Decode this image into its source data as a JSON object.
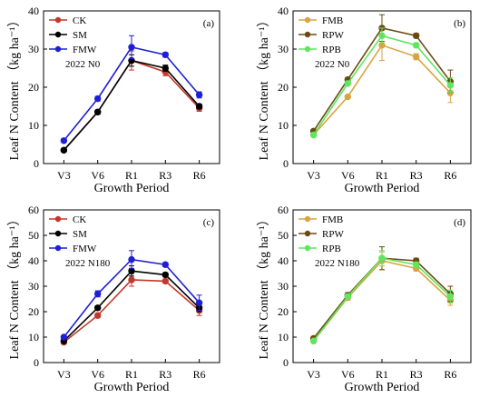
{
  "chart_data": [
    {
      "type": "line",
      "panel_label": "(a)",
      "annotation": "2022 N0",
      "categories": [
        "V3",
        "V6",
        "R1",
        "R3",
        "R6"
      ],
      "xlabel": "Growth Period",
      "ylabel": "Leaf N Content （kg ha⁻¹）",
      "ylim": [
        0,
        40
      ],
      "yticks": [
        "0",
        "10",
        "20",
        "30",
        "40"
      ],
      "legend_position": "top-left",
      "series": [
        {
          "name": "CK",
          "color": "#c0392b",
          "values": [
            3.5,
            13.5,
            27.0,
            24.0,
            14.5
          ],
          "errors": [
            0.5,
            0.6,
            2.5,
            1.0,
            0.8
          ]
        },
        {
          "name": "SM",
          "color": "#000000",
          "values": [
            3.5,
            13.5,
            27.0,
            25.0,
            15.0
          ],
          "errors": [
            0.4,
            0.5,
            1.5,
            0.8,
            0.6
          ]
        },
        {
          "name": "FMW",
          "color": "#1f1fd6",
          "values": [
            6.0,
            17.0,
            30.5,
            28.5,
            18.0
          ],
          "errors": [
            0.5,
            0.6,
            3.0,
            0.6,
            0.8
          ]
        }
      ]
    },
    {
      "type": "line",
      "panel_label": "(b)",
      "annotation": "2022 N0",
      "categories": [
        "V3",
        "V6",
        "R1",
        "R3",
        "R6"
      ],
      "xlabel": "Growth Period",
      "ylabel": "Leaf N Content （kg ha⁻¹）",
      "ylim": [
        0,
        40
      ],
      "yticks": [
        "0",
        "10",
        "20",
        "30",
        "40"
      ],
      "legend_position": "top-left",
      "series": [
        {
          "name": "FMB",
          "color": "#d9a441",
          "values": [
            7.5,
            17.5,
            31.0,
            28.0,
            18.5
          ],
          "errors": [
            0.4,
            0.5,
            4.0,
            0.8,
            2.5
          ]
        },
        {
          "name": "RPW",
          "color": "#6b4a12",
          "values": [
            8.5,
            22.0,
            35.5,
            33.5,
            21.5
          ],
          "errors": [
            0.4,
            0.5,
            3.5,
            0.6,
            3.0
          ]
        },
        {
          "name": "RPB",
          "color": "#5ee65e",
          "values": [
            7.5,
            21.0,
            33.5,
            31.0,
            20.5
          ],
          "errors": [
            0.4,
            0.5,
            2.0,
            0.6,
            2.0
          ]
        }
      ]
    },
    {
      "type": "line",
      "panel_label": "(c)",
      "annotation": "2022 N180",
      "categories": [
        "V3",
        "V6",
        "R1",
        "R3",
        "R6"
      ],
      "xlabel": "Growth Period",
      "ylabel": "Leaf N Content （kg ha⁻¹）",
      "ylim": [
        0,
        60
      ],
      "yticks": [
        "0",
        "10",
        "20",
        "30",
        "40",
        "50",
        "60"
      ],
      "legend_position": "top-left",
      "series": [
        {
          "name": "CK",
          "color": "#c0392b",
          "values": [
            8.0,
            18.5,
            32.5,
            32.0,
            20.5
          ],
          "errors": [
            0.5,
            0.8,
            2.5,
            0.8,
            2.0
          ]
        },
        {
          "name": "SM",
          "color": "#000000",
          "values": [
            8.5,
            21.5,
            36.0,
            34.5,
            21.5
          ],
          "errors": [
            0.5,
            0.8,
            2.0,
            0.8,
            1.5
          ]
        },
        {
          "name": "FMW",
          "color": "#1f1fd6",
          "values": [
            10.0,
            27.0,
            40.5,
            38.5,
            23.5
          ],
          "errors": [
            0.6,
            1.2,
            3.5,
            0.8,
            3.0
          ]
        }
      ]
    },
    {
      "type": "line",
      "panel_label": "(d)",
      "annotation": "2022 N180",
      "categories": [
        "V3",
        "V6",
        "R1",
        "R3",
        "R6"
      ],
      "xlabel": "Growth Period",
      "ylabel": "Leaf N Content （kg ha⁻¹）",
      "ylim": [
        0,
        60
      ],
      "yticks": [
        "0",
        "10",
        "20",
        "30",
        "40",
        "50",
        "60"
      ],
      "legend_position": "top-left",
      "series": [
        {
          "name": "FMB",
          "color": "#d9a441",
          "values": [
            8.5,
            25.5,
            40.0,
            37.0,
            24.5
          ],
          "errors": [
            0.5,
            1.0,
            3.5,
            1.0,
            2.0
          ]
        },
        {
          "name": "RPW",
          "color": "#6b4a12",
          "values": [
            9.5,
            26.5,
            41.0,
            40.0,
            27.0
          ],
          "errors": [
            0.5,
            1.0,
            4.5,
            1.0,
            3.0
          ]
        },
        {
          "name": "RPB",
          "color": "#5ee65e",
          "values": [
            8.5,
            26.0,
            41.0,
            38.5,
            26.0
          ],
          "errors": [
            0.5,
            1.0,
            3.0,
            1.0,
            2.5
          ]
        }
      ]
    }
  ]
}
